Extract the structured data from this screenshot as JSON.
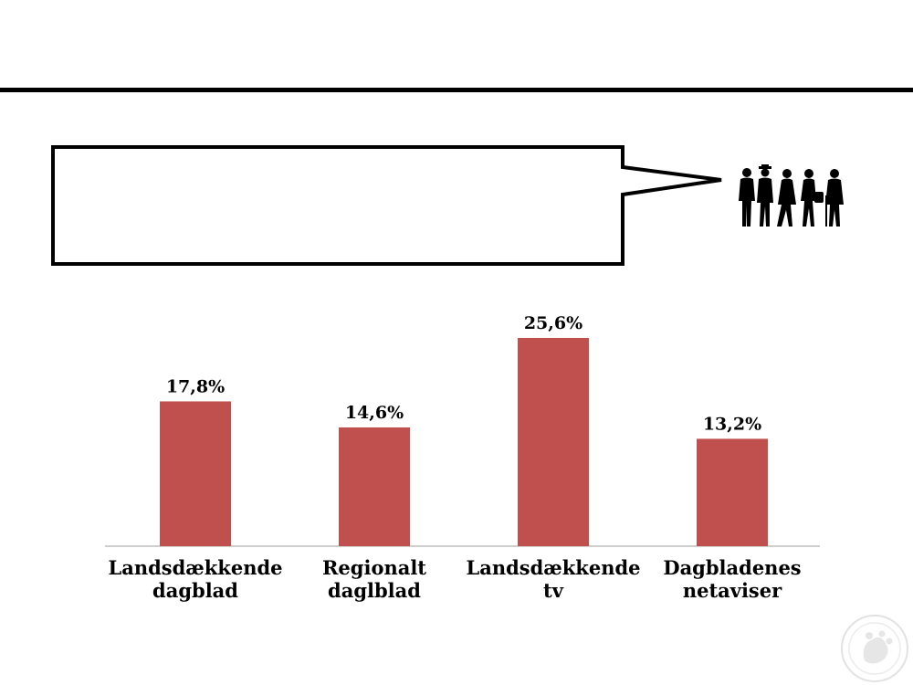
{
  "slide": {
    "accent_color": "#C0504D",
    "rule_color": "#000000"
  },
  "decor": {
    "people_icon": "people-silhouette-icon",
    "seal_icon": "university-seal-icon"
  },
  "chart_data": {
    "type": "bar",
    "categories": [
      [
        "Landsdækkende",
        "dagblad"
      ],
      [
        "Regionalt",
        "daglblad"
      ],
      [
        "Landsdækkende",
        "tv"
      ],
      [
        "Dagbladenes",
        "netaviser"
      ]
    ],
    "values": [
      17.8,
      14.6,
      25.6,
      13.2
    ],
    "value_labels": [
      "17,8%",
      "14,6%",
      "25,6%",
      "13,2%"
    ],
    "title": "",
    "xlabel": "",
    "ylabel": "",
    "ylim": [
      0,
      30
    ],
    "grid": false,
    "legend": "none",
    "bar_color": "#C0504D"
  }
}
